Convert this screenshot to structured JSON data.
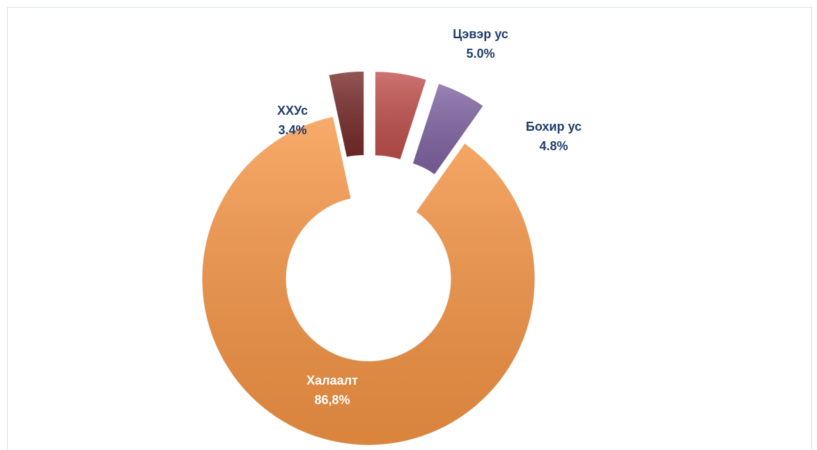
{
  "chart_data": {
    "type": "donut",
    "categories": [
      "Цэвэр ус",
      "Бохир ус",
      "Халаалт",
      "ХХУс"
    ],
    "values": [
      5.0,
      4.8,
      86.8,
      3.4
    ],
    "value_labels": [
      "5.0%",
      "4.8%",
      "86,8%",
      "3.4%"
    ],
    "colors": [
      "#c0504d",
      "#8064a2",
      "#f79646",
      "#772c2a"
    ]
  }
}
